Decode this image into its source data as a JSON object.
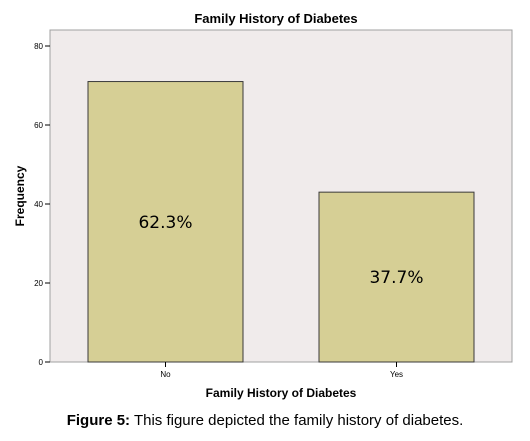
{
  "chart_data": {
    "type": "bar",
    "title": "Family History of Diabetes",
    "xlabel": "Family History of Diabetes",
    "ylabel": "Frequency",
    "categories": [
      "No",
      "Yes"
    ],
    "values": [
      71,
      43
    ],
    "data_labels": [
      "62.3%",
      "37.7%"
    ],
    "ylim": [
      0,
      80
    ],
    "yticks": [
      0,
      20,
      40,
      60,
      80
    ],
    "grid": false,
    "colors": {
      "bar_fill": "#d6cf95",
      "bar_stroke": "#3a3a3a",
      "plot_background": "#f0ebeb"
    }
  },
  "caption": {
    "label": "Figure 5:",
    "text": " This figure depicted the family history of diabetes."
  }
}
